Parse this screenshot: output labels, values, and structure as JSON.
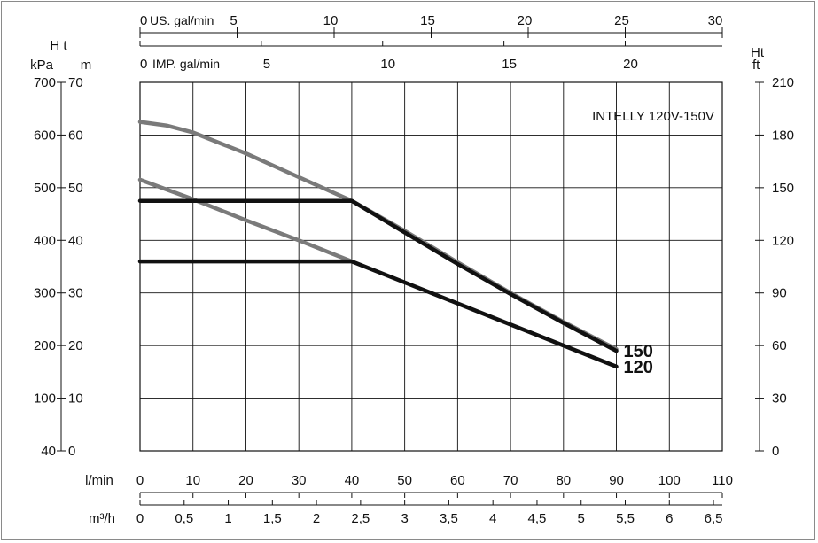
{
  "chart_data": {
    "type": "line",
    "annotation": "INTELLY 120V-150V",
    "x_axes": {
      "l_min": {
        "label": "l/min",
        "range": [
          0,
          110
        ],
        "ticks": [
          0,
          10,
          20,
          30,
          40,
          50,
          60,
          70,
          80,
          90,
          100,
          110
        ]
      },
      "m3_h": {
        "label": "m³/h",
        "range": [
          0,
          6.6
        ],
        "ticks": [
          "0",
          "0,5",
          "1",
          "1,5",
          "2",
          "2,5",
          "3",
          "3,5",
          "4",
          "4,5",
          "5",
          "5,5",
          "6",
          "6,5"
        ]
      },
      "us_gal_min": {
        "label": "US. gal/min",
        "range": [
          0,
          30
        ],
        "ticks": [
          0,
          5,
          10,
          15,
          20,
          25,
          30
        ]
      },
      "imp_gal_min": {
        "label": "IMP. gal/min",
        "range": [
          0,
          24
        ],
        "ticks": [
          0,
          5,
          10,
          15,
          20
        ]
      }
    },
    "y_axes": {
      "head_title": "H t",
      "kpa": {
        "label": "kPa",
        "ticks": [
          40,
          100,
          200,
          300,
          400,
          500,
          600,
          700
        ]
      },
      "m": {
        "label": "m",
        "range": [
          0,
          70
        ],
        "ticks": [
          0,
          10,
          20,
          30,
          40,
          50,
          60,
          70
        ]
      },
      "ft": {
        "label_line1": "Ht",
        "label_line2": "ft",
        "ticks": [
          0,
          30,
          60,
          90,
          120,
          150,
          180,
          210
        ]
      }
    },
    "grid": true,
    "series": [
      {
        "name": "150",
        "color": "#111111",
        "points": [
          [
            0,
            47.5
          ],
          [
            40,
            47.5
          ],
          [
            50,
            41.5
          ],
          [
            60,
            35.5
          ],
          [
            70,
            29.8
          ],
          [
            80,
            24.3
          ],
          [
            90,
            19.0
          ]
        ]
      },
      {
        "name": "120",
        "color": "#111111",
        "points": [
          [
            0,
            36
          ],
          [
            40,
            36
          ],
          [
            50,
            32.0
          ],
          [
            60,
            28.0
          ],
          [
            70,
            24.0
          ],
          [
            80,
            20.0
          ],
          [
            90,
            16.0
          ]
        ]
      }
    ],
    "unregulated_curves": [
      {
        "color": "#7a7a7a",
        "points": [
          [
            0,
            62.5
          ],
          [
            5,
            61.8
          ],
          [
            10,
            60.5
          ],
          [
            20,
            56.5
          ],
          [
            30,
            52
          ],
          [
            40,
            47.5
          ],
          [
            50,
            41.8
          ],
          [
            60,
            35.8
          ],
          [
            70,
            30.0
          ],
          [
            80,
            24.5
          ],
          [
            90,
            19.3
          ]
        ]
      },
      {
        "color": "#7a7a7a",
        "points": [
          [
            0,
            51.5
          ],
          [
            10,
            47.8
          ],
          [
            20,
            43.8
          ],
          [
            30,
            40.0
          ],
          [
            40,
            36
          ]
        ]
      }
    ]
  }
}
